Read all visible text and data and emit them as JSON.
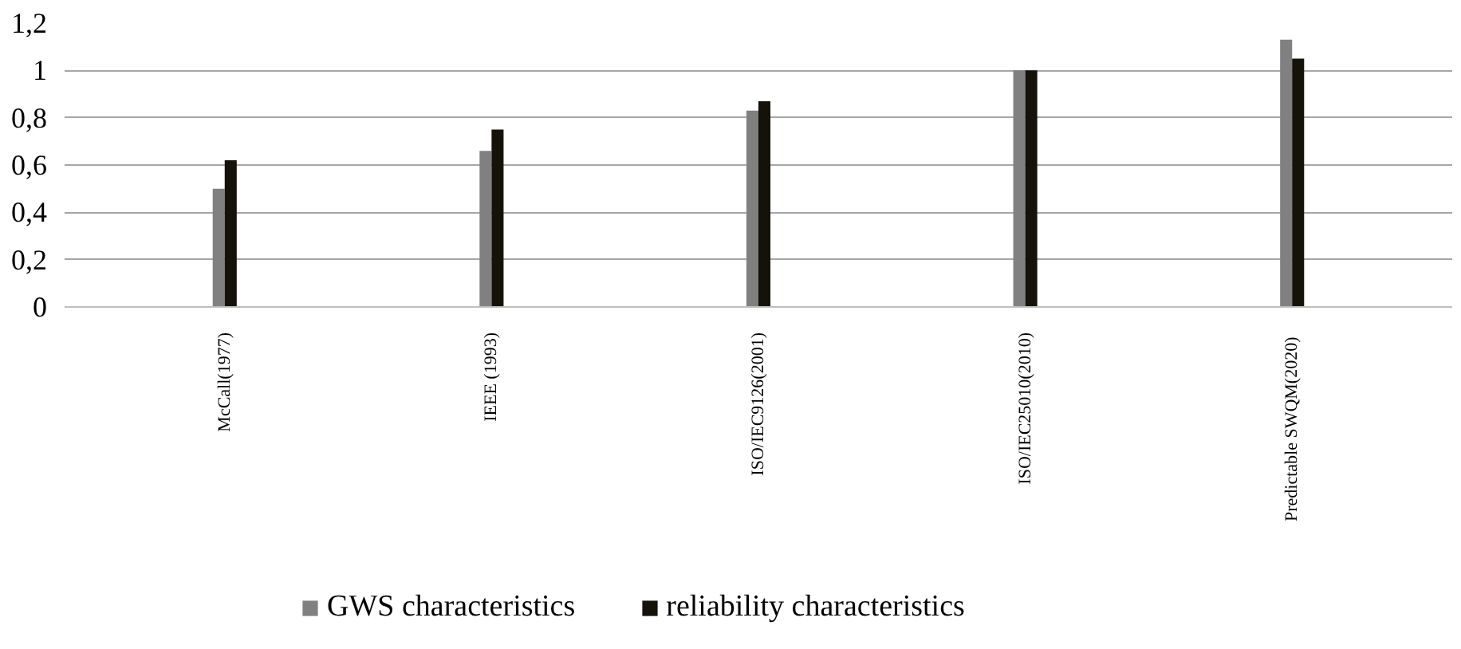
{
  "chart_data": {
    "type": "bar",
    "categories": [
      "McCall(1977)",
      "IEEE (1993)",
      "ISO/IEC9126(2001)",
      "ISO/IEC25010(2010)",
      "Predictable  SWQM(2020)"
    ],
    "ylim": [
      0,
      1.2
    ],
    "yticks": [
      0,
      {
        "value": 0.2,
        "label": "0,2"
      },
      {
        "value": 0.4,
        "label": "0,4"
      },
      {
        "value": 0.6,
        "label": "0,6"
      },
      {
        "value": 0.8,
        "label": "0,8"
      },
      1,
      {
        "value": 1.2,
        "label": "1,2"
      }
    ],
    "series": [
      {
        "name": "GWS characteristics",
        "color": "#808080",
        "values": [
          0.5,
          0.66,
          0.83,
          1.0,
          1.13
        ]
      },
      {
        "name": "reliability characteristics",
        "color": "#15120a",
        "values": [
          0.62,
          0.75,
          0.87,
          1.0,
          1.05
        ]
      }
    ],
    "grid": "y",
    "legend": "bottom"
  }
}
